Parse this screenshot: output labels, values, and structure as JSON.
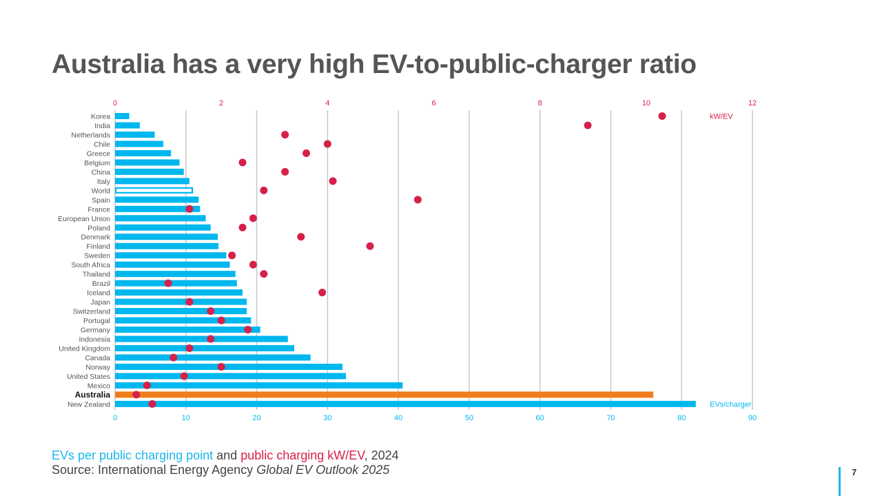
{
  "slide": {
    "title": "Australia has a very high EV-to-public-charger ratio",
    "caption_evs": "EVs per public charging point",
    "caption_and": " and ",
    "caption_kw": "public charging kW/EV",
    "caption_year": ", 2024",
    "source_prefix": "Source: International Energy Agency ",
    "source_title": "Global EV Outlook 2025",
    "page_number": "7"
  },
  "colors": {
    "bar": "#00b7ee",
    "highlight_bar": "#f07c1c",
    "dot": "#d6204a",
    "grid": "#c8c8c8",
    "text": "#555555"
  },
  "chart_data": {
    "type": "bar",
    "orientation": "horizontal",
    "categories": [
      "Korea",
      "India",
      "Netherlands",
      "Chile",
      "Greece",
      "Belgium",
      "China",
      "Italy",
      "World",
      "Spain",
      "France",
      "European Union",
      "Poland",
      "Denmark",
      "Finland",
      "Sweden",
      "South Africa",
      "Thailand",
      "Brazil",
      "Iceland",
      "Japan",
      "Switzerland",
      "Portugal",
      "Germany",
      "Indonesia",
      "United Kingdom",
      "Canada",
      "Norway",
      "United States",
      "Mexico",
      "Australia",
      "New Zealand"
    ],
    "highlight_category": "Australia",
    "outlined_category": "World",
    "series": [
      {
        "name": "EVs/charger",
        "axis": "bottom",
        "values": [
          2,
          3.5,
          5.6,
          6.8,
          7.9,
          9.1,
          9.7,
          10.5,
          11,
          11.8,
          12,
          12.8,
          13.5,
          14.5,
          14.6,
          15.7,
          16.2,
          17,
          17.2,
          18,
          18.6,
          18.6,
          19.2,
          20.5,
          24.4,
          25.3,
          27.6,
          32.1,
          32.6,
          40.6,
          76,
          82
        ]
      },
      {
        "name": "kW/EV",
        "axis": "top",
        "values": [
          10.3,
          8.9,
          3.2,
          4.0,
          3.6,
          2.4,
          3.2,
          4.1,
          2.8,
          5.7,
          1.4,
          2.6,
          2.4,
          3.5,
          4.8,
          2.2,
          2.6,
          2.8,
          1.0,
          3.9,
          1.4,
          1.8,
          2.0,
          2.5,
          1.8,
          1.4,
          1.1,
          2.0,
          1.3,
          0.6,
          0.4,
          0.7
        ]
      }
    ],
    "x_bottom": {
      "min": 0,
      "max": 90,
      "ticks": [
        "0",
        "10",
        "20",
        "30",
        "40",
        "50",
        "60",
        "70",
        "80",
        "90"
      ]
    },
    "x_top": {
      "min": 0,
      "max": 12,
      "ticks": [
        "0",
        "2",
        "4",
        "6",
        "8",
        "10",
        "12"
      ]
    },
    "grid": true
  }
}
